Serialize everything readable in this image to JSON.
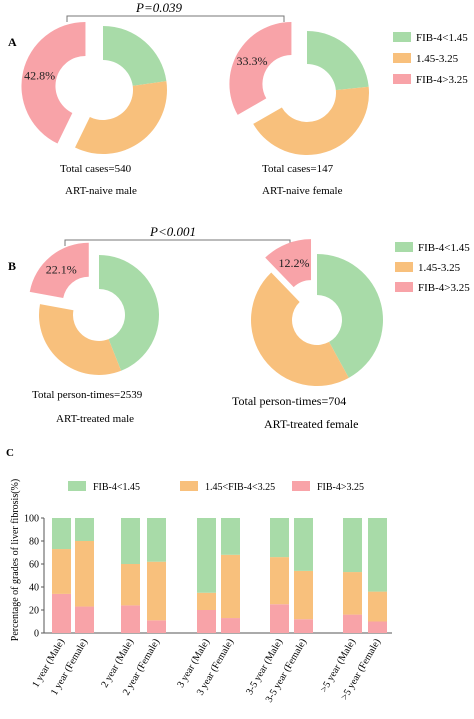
{
  "colors": {
    "green": "#a8dba8",
    "orange": "#f8c07c",
    "pink": "#f8a3a8",
    "axis": "#555555"
  },
  "chart_data": [
    {
      "type": "pie",
      "panel": "A",
      "comparison_label": "P=0.039",
      "legend": {
        "placement": "right",
        "entries": [
          "FIB-4<1.45",
          "1.45-3.25",
          "FIB-4>3.25"
        ]
      },
      "charts": [
        {
          "slices": [
            {
              "label": "FIB-4<1.45",
              "value": 22.8
            },
            {
              "label": "1.45-3.25",
              "value": 34.4
            },
            {
              "label": "FIB-4>3.25",
              "value": 42.8,
              "data_label": "42.8%",
              "exploded": true
            }
          ],
          "total_text": "Total cases=540",
          "caption": "ART-naive male"
        },
        {
          "slices": [
            {
              "label": "FIB-4<1.45",
              "value": 23.4
            },
            {
              "label": "1.45-3.25",
              "value": 43.3
            },
            {
              "label": "FIB-4>3.25",
              "value": 33.3,
              "data_label": "33.3%",
              "exploded": true
            }
          ],
          "total_text": "Total cases=147",
          "caption": "ART-naive female"
        }
      ]
    },
    {
      "type": "pie",
      "panel": "B",
      "comparison_label": "P<0.001",
      "legend": {
        "placement": "right",
        "entries": [
          "FIB-4<1.45",
          "1.45-3.25",
          "FIB-4>3.25"
        ]
      },
      "charts": [
        {
          "slices": [
            {
              "label": "FIB-4<1.45",
              "value": 44.0
            },
            {
              "label": "1.45-3.25",
              "value": 33.9
            },
            {
              "label": "FIB-4>3.25",
              "value": 22.1,
              "data_label": "22.1%",
              "exploded": true
            }
          ],
          "total_text": "Total person-times=2539",
          "caption": "ART-treated male"
        },
        {
          "slices": [
            {
              "label": "FIB-4<1.45",
              "value": 42.0
            },
            {
              "label": "1.45-3.25",
              "value": 45.8
            },
            {
              "label": "FIB-4>3.25",
              "value": 12.2,
              "data_label": "12.2%",
              "exploded": true
            }
          ],
          "total_text": "Total person-times=704",
          "caption": "ART-treated female"
        }
      ]
    },
    {
      "type": "bar",
      "stacked": true,
      "panel": "C",
      "ylabel": "Percentage of grades of liver fibrosis(%)",
      "ylim": [
        0,
        100
      ],
      "yticks": [
        0,
        20,
        40,
        60,
        80,
        100
      ],
      "legend": {
        "placement": "top",
        "entries": [
          "FIB-4<1.45",
          "1.45<FIB-4<3.25",
          "FIB-4>3.25"
        ]
      },
      "categories": [
        "1 year (Male)",
        "1 year (Female)",
        "2 year (Male)",
        "2 year (Female)",
        "3 year (Male)",
        "3 year (Female)",
        "3-5 year (Male)",
        "3-5 year (Female)",
        ">5 year (Male)",
        ">5 year (Female)"
      ],
      "series": [
        {
          "name": "FIB-4>3.25",
          "values": [
            34,
            23,
            24,
            11,
            20,
            13,
            25,
            12,
            16,
            10
          ]
        },
        {
          "name": "1.45<FIB-4<3.25",
          "values": [
            39,
            57,
            36,
            51,
            15,
            55,
            41,
            42,
            37,
            26
          ]
        },
        {
          "name": "FIB-4<1.45",
          "values": [
            27,
            20,
            40,
            38,
            65,
            32,
            34,
            46,
            47,
            64
          ]
        }
      ]
    }
  ]
}
